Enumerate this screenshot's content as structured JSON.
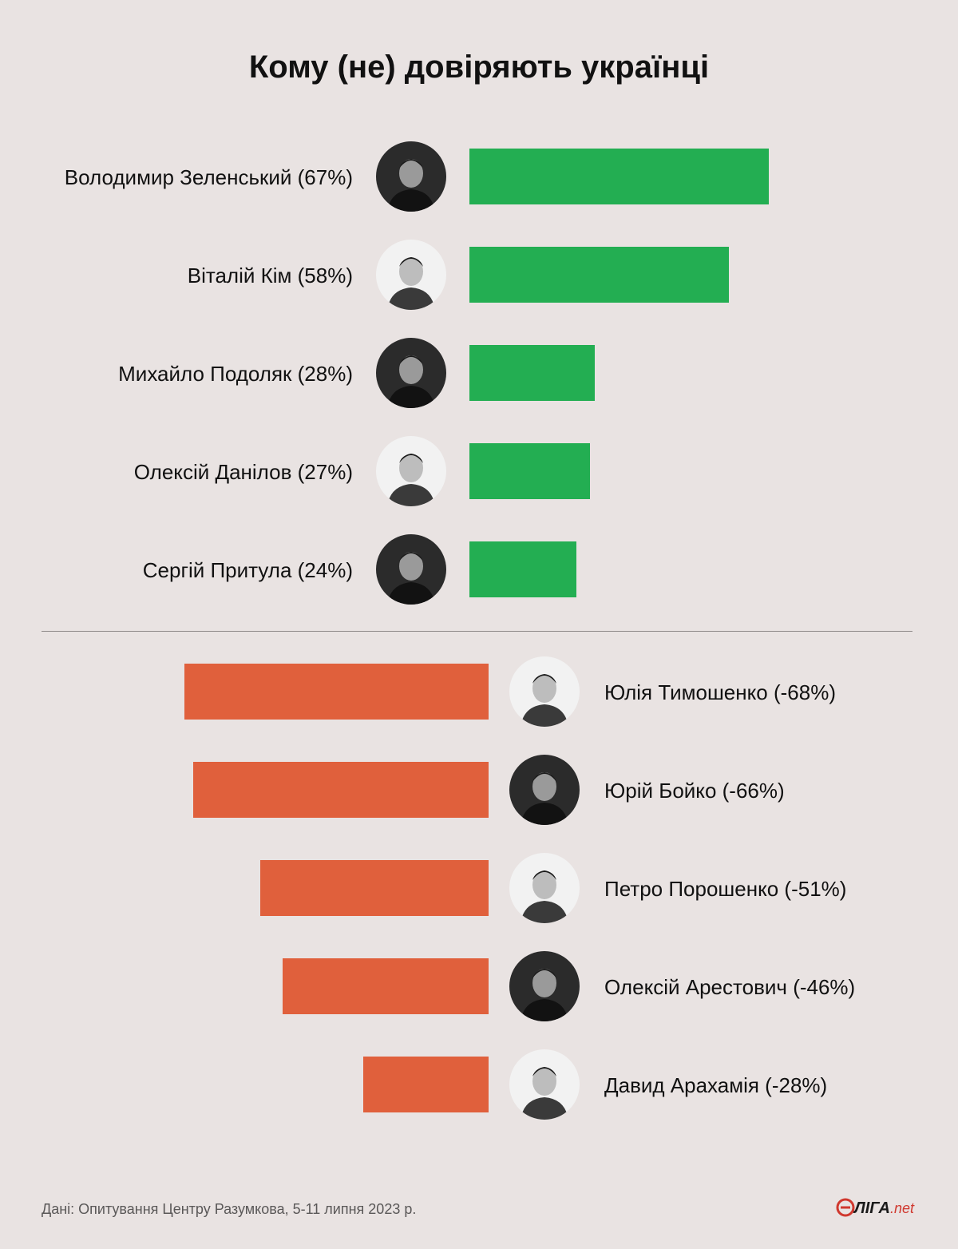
{
  "title": "Кому (не) довіряють українці",
  "chart_data": {
    "type": "bar",
    "title": "Кому (не) довіряють українці",
    "trust": [
      {
        "name": "Володимир Зеленський (67%)",
        "value": 67
      },
      {
        "name": "Віталій Кім (58%)",
        "value": 58
      },
      {
        "name": "Михайло Подоляк (28%)",
        "value": 28
      },
      {
        "name": "Олексій Данілов (27%)",
        "value": 27
      },
      {
        "name": "Сергій Притула (24%)",
        "value": 24
      }
    ],
    "distrust": [
      {
        "name": "Юлія Тимошенко (-68%)",
        "value": -68
      },
      {
        "name": "Юрій Бойко (-66%)",
        "value": -66
      },
      {
        "name": "Петро Порошенко (-51%)",
        "value": -51
      },
      {
        "name": "Олексій Арестович (-46%)",
        "value": -46
      },
      {
        "name": "Давид Арахамія (-28%)",
        "value": -28
      }
    ],
    "colors": {
      "trust": "#23ae52",
      "distrust": "#e0603c"
    }
  },
  "footer": "Дані: Опитування Центру Разумкова, 5-11 липня 2023 р.",
  "logo": {
    "main": "ЛІГА",
    "suffix": ".net"
  }
}
